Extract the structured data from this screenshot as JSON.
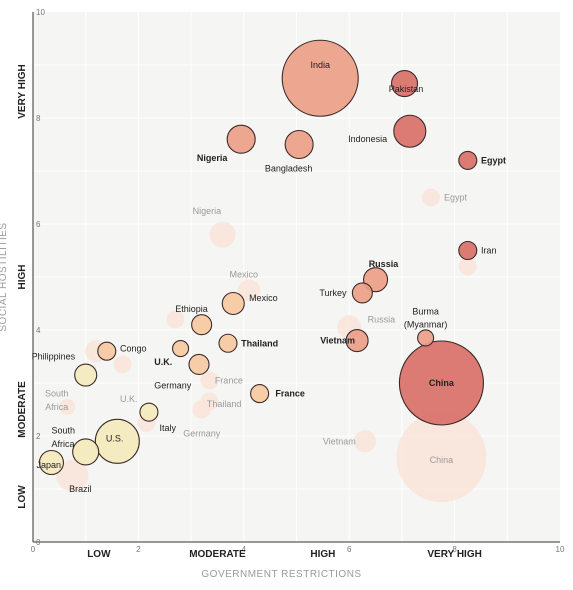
{
  "chart_data": {
    "type": "scatter",
    "title": "",
    "xlabel": "GOVERNMENT RESTRICTIONS",
    "ylabel": "SOCIAL HOSTILITIES",
    "xlim": [
      0,
      10
    ],
    "ylim": [
      0,
      10
    ],
    "x_ticks": [
      "0",
      "2",
      "4",
      "6",
      "8",
      "10"
    ],
    "y_ticks": [
      "0",
      "2",
      "4",
      "6",
      "8",
      "10"
    ],
    "x_bands": [
      "LOW",
      "MODERATE",
      "HIGH",
      "VERY HIGH"
    ],
    "y_bands": [
      "LOW",
      "MODERATE",
      "HIGH",
      "VERY HIGH"
    ],
    "grid": true,
    "colors": {
      "background": "#f5f5f3",
      "grid": "#ffffff",
      "low": "#f4e9bd",
      "moderate": "#f6c9a2",
      "high": "#ec9e87",
      "very_high": "#d97068",
      "faded_fill": "#f9e4d8",
      "faded_text": "#9a9a9a"
    },
    "series": [
      {
        "name": "",
        "points": [
          {
            "label": "India",
            "x": 5.45,
            "y": 8.75,
            "size": 38,
            "emph": "normal",
            "level": "high"
          },
          {
            "label": "Pakistan",
            "x": 7.05,
            "y": 8.65,
            "size": 13,
            "emph": "normal",
            "level": "very_high"
          },
          {
            "label": "Indonesia",
            "x": 7.15,
            "y": 7.75,
            "size": 16,
            "emph": "normal",
            "level": "very_high"
          },
          {
            "label": "Nigeria",
            "x": 3.95,
            "y": 7.6,
            "size": 14,
            "emph": "bold",
            "level": "high"
          },
          {
            "label": "Bangladesh",
            "x": 5.05,
            "y": 7.5,
            "size": 14,
            "emph": "normal",
            "level": "high"
          },
          {
            "label": "Egypt",
            "x": 8.25,
            "y": 7.2,
            "size": 9,
            "emph": "bold",
            "level": "very_high"
          },
          {
            "label": "Iran",
            "x": 8.25,
            "y": 5.5,
            "size": 9,
            "emph": "normal",
            "level": "very_high"
          },
          {
            "label": "Russia",
            "x": 6.5,
            "y": 4.95,
            "size": 12,
            "emph": "bold",
            "level": "high"
          },
          {
            "label": "Turkey",
            "x": 6.25,
            "y": 4.7,
            "size": 10,
            "emph": "normal",
            "level": "high"
          },
          {
            "label": "Mexico",
            "x": 3.8,
            "y": 4.5,
            "size": 11,
            "emph": "normal",
            "level": "moderate"
          },
          {
            "label": "Ethiopia",
            "x": 3.2,
            "y": 4.1,
            "size": 10,
            "emph": "normal",
            "level": "moderate"
          },
          {
            "label": "Thailand",
            "x": 3.7,
            "y": 3.75,
            "size": 9,
            "emph": "bold",
            "level": "moderate"
          },
          {
            "label": "Vietnam",
            "x": 6.15,
            "y": 3.8,
            "size": 11,
            "emph": "bold",
            "level": "high"
          },
          {
            "label": "Burma (Myanmar)",
            "x": 7.45,
            "y": 3.85,
            "size": 8,
            "emph": "normal",
            "level": "high"
          },
          {
            "label": "U.K.",
            "x": 2.8,
            "y": 3.65,
            "size": 8,
            "emph": "bold",
            "level": "moderate"
          },
          {
            "label": "Germany",
            "x": 3.15,
            "y": 3.35,
            "size": 10,
            "emph": "normal",
            "level": "moderate"
          },
          {
            "label": "China",
            "x": 7.75,
            "y": 3.0,
            "size": 42,
            "emph": "bold",
            "level": "very_high"
          },
          {
            "label": "France",
            "x": 4.3,
            "y": 2.8,
            "size": 9,
            "emph": "bold",
            "level": "moderate"
          },
          {
            "label": "Congo",
            "x": 1.4,
            "y": 3.6,
            "size": 9,
            "emph": "normal",
            "level": "moderate"
          },
          {
            "label": "Philippines",
            "x": 1.0,
            "y": 3.15,
            "size": 11,
            "emph": "normal",
            "level": "low"
          },
          {
            "label": "Italy",
            "x": 2.2,
            "y": 2.45,
            "size": 9,
            "emph": "normal",
            "level": "low"
          },
          {
            "label": "U.S.",
            "x": 1.6,
            "y": 1.9,
            "size": 22,
            "emph": "normal",
            "level": "low"
          },
          {
            "label": "South Africa",
            "x": 1.0,
            "y": 1.7,
            "size": 13,
            "emph": "normal",
            "level": "low"
          },
          {
            "label": "Japan",
            "x": 0.35,
            "y": 1.5,
            "size": 12,
            "emph": "normal",
            "level": "low"
          }
        ]
      },
      {
        "name": "",
        "faded": true,
        "points": [
          {
            "label": "Nigeria",
            "x": 3.6,
            "y": 5.8,
            "size": 13
          },
          {
            "label": "Egypt",
            "x": 7.55,
            "y": 6.5,
            "size": 9
          },
          {
            "label": "Iran",
            "x": 8.25,
            "y": 5.2,
            "size": 9
          },
          {
            "label": "Mexico",
            "x": 4.1,
            "y": 4.75,
            "size": 11
          },
          {
            "label": "Russia",
            "x": 6.0,
            "y": 4.05,
            "size": 12
          },
          {
            "label": "Ethiopia",
            "x": 2.7,
            "y": 4.2,
            "size": 9
          },
          {
            "label": "France",
            "x": 3.35,
            "y": 3.05,
            "size": 9
          },
          {
            "label": "Thailand",
            "x": 3.35,
            "y": 2.65,
            "size": 9
          },
          {
            "label": "Germany",
            "x": 3.2,
            "y": 2.5,
            "size": 9
          },
          {
            "label": "U.K.",
            "x": 2.15,
            "y": 2.25,
            "size": 9
          },
          {
            "label": "Vietnam",
            "x": 6.3,
            "y": 1.9,
            "size": 11
          },
          {
            "label": "South Africa",
            "x": 0.65,
            "y": 2.55,
            "size": 8
          },
          {
            "label": "Philippines",
            "x": 1.2,
            "y": 3.6,
            "size": 11
          },
          {
            "label": "Congo",
            "x": 1.7,
            "y": 3.35,
            "size": 9
          },
          {
            "label": "Brazil",
            "x": 0.75,
            "y": 1.25,
            "size": 16
          },
          {
            "label": "China",
            "x": 7.75,
            "y": 1.6,
            "size": 45
          }
        ]
      }
    ],
    "labels": [
      {
        "text": "India",
        "x": 5.45,
        "y": 9.0,
        "anchor": "middle",
        "emph": "normal",
        "faded": false
      },
      {
        "text": "Pakistan",
        "x": 6.75,
        "y": 8.55,
        "anchor": "start",
        "emph": "normal",
        "faded": false
      },
      {
        "text": "Indonesia",
        "x": 6.35,
        "y": 7.6,
        "anchor": "middle",
        "emph": "normal",
        "faded": false
      },
      {
        "text": "Nigeria",
        "x": 3.4,
        "y": 7.25,
        "anchor": "middle",
        "emph": "bold",
        "faded": false
      },
      {
        "text": "Bangladesh",
        "x": 4.85,
        "y": 7.05,
        "anchor": "middle",
        "emph": "normal",
        "faded": false
      },
      {
        "text": "Egypt",
        "x": 8.5,
        "y": 7.2,
        "anchor": "start",
        "emph": "bold",
        "faded": false
      },
      {
        "text": "Egypt",
        "x": 7.8,
        "y": 6.5,
        "anchor": "start",
        "emph": "normal",
        "faded": true
      },
      {
        "text": "Nigeria",
        "x": 3.3,
        "y": 6.25,
        "anchor": "middle",
        "emph": "normal",
        "faded": true
      },
      {
        "text": "Iran",
        "x": 8.5,
        "y": 5.5,
        "anchor": "start",
        "emph": "normal",
        "faded": false
      },
      {
        "text": "Russia",
        "x": 6.65,
        "y": 5.25,
        "anchor": "middle",
        "emph": "bold",
        "faded": false
      },
      {
        "text": "Mexico",
        "x": 4.0,
        "y": 5.05,
        "anchor": "middle",
        "emph": "normal",
        "faded": true
      },
      {
        "text": "Turkey",
        "x": 5.95,
        "y": 4.7,
        "anchor": "end",
        "emph": "normal",
        "faded": false
      },
      {
        "text": "Mexico",
        "x": 4.1,
        "y": 4.6,
        "anchor": "start",
        "emph": "normal",
        "faded": false
      },
      {
        "text": "Ethiopia",
        "x": 2.7,
        "y": 4.4,
        "anchor": "start",
        "emph": "normal",
        "faded": false
      },
      {
        "text": "Russia",
        "x": 6.35,
        "y": 4.2,
        "anchor": "start",
        "emph": "normal",
        "faded": true
      },
      {
        "text": "Burma",
        "x": 7.45,
        "y": 4.35,
        "anchor": "middle",
        "emph": "normal",
        "faded": false
      },
      {
        "text": "(Myanmar)",
        "x": 7.45,
        "y": 4.1,
        "anchor": "middle",
        "emph": "normal",
        "faded": false
      },
      {
        "text": "Thailand",
        "x": 3.95,
        "y": 3.75,
        "anchor": "start",
        "emph": "bold",
        "faded": false
      },
      {
        "text": "Vietnam",
        "x": 5.45,
        "y": 3.8,
        "anchor": "start",
        "emph": "bold",
        "faded": false
      },
      {
        "text": "Congo",
        "x": 1.65,
        "y": 3.65,
        "anchor": "start",
        "emph": "normal",
        "faded": false
      },
      {
        "text": "U.K.",
        "x": 2.3,
        "y": 3.4,
        "anchor": "start",
        "emph": "bold",
        "faded": false
      },
      {
        "text": "Philippines",
        "x": 0.8,
        "y": 3.5,
        "anchor": "end",
        "emph": "normal",
        "faded": false
      },
      {
        "text": "China",
        "x": 7.75,
        "y": 3.0,
        "anchor": "middle",
        "emph": "bold",
        "faded": false
      },
      {
        "text": "France",
        "x": 3.45,
        "y": 3.05,
        "anchor": "start",
        "emph": "normal",
        "faded": true
      },
      {
        "text": "Germany",
        "x": 2.3,
        "y": 2.95,
        "anchor": "start",
        "emph": "normal",
        "faded": false
      },
      {
        "text": "France",
        "x": 4.6,
        "y": 2.8,
        "anchor": "start",
        "emph": "bold",
        "faded": false
      },
      {
        "text": "South",
        "x": 0.45,
        "y": 2.8,
        "anchor": "middle",
        "emph": "normal",
        "faded": true
      },
      {
        "text": "Africa",
        "x": 0.45,
        "y": 2.55,
        "anchor": "middle",
        "emph": "normal",
        "faded": true
      },
      {
        "text": "U.K.",
        "x": 1.65,
        "y": 2.7,
        "anchor": "start",
        "emph": "normal",
        "faded": true
      },
      {
        "text": "Thailand",
        "x": 3.3,
        "y": 2.6,
        "anchor": "start",
        "emph": "normal",
        "faded": true
      },
      {
        "text": "Italy",
        "x": 2.4,
        "y": 2.15,
        "anchor": "start",
        "emph": "normal",
        "faded": false
      },
      {
        "text": "Germany",
        "x": 2.85,
        "y": 2.05,
        "anchor": "start",
        "emph": "normal",
        "faded": true
      },
      {
        "text": "South",
        "x": 0.35,
        "y": 2.1,
        "anchor": "start",
        "emph": "normal",
        "faded": false
      },
      {
        "text": "Africa",
        "x": 0.35,
        "y": 1.85,
        "anchor": "start",
        "emph": "normal",
        "faded": false
      },
      {
        "text": "U.S.",
        "x": 1.55,
        "y": 1.95,
        "anchor": "middle",
        "emph": "normal",
        "faded": false
      },
      {
        "text": "Vietnam",
        "x": 5.5,
        "y": 1.9,
        "anchor": "start",
        "emph": "normal",
        "faded": true
      },
      {
        "text": "China",
        "x": 7.75,
        "y": 1.55,
        "anchor": "middle",
        "emph": "normal",
        "faded": true
      },
      {
        "text": "Japan",
        "x": 0.3,
        "y": 1.45,
        "anchor": "middle",
        "emph": "normal",
        "faded": false
      },
      {
        "text": "Brazil",
        "x": 0.9,
        "y": 1.0,
        "anchor": "middle",
        "emph": "normal",
        "faded": false
      }
    ]
  }
}
